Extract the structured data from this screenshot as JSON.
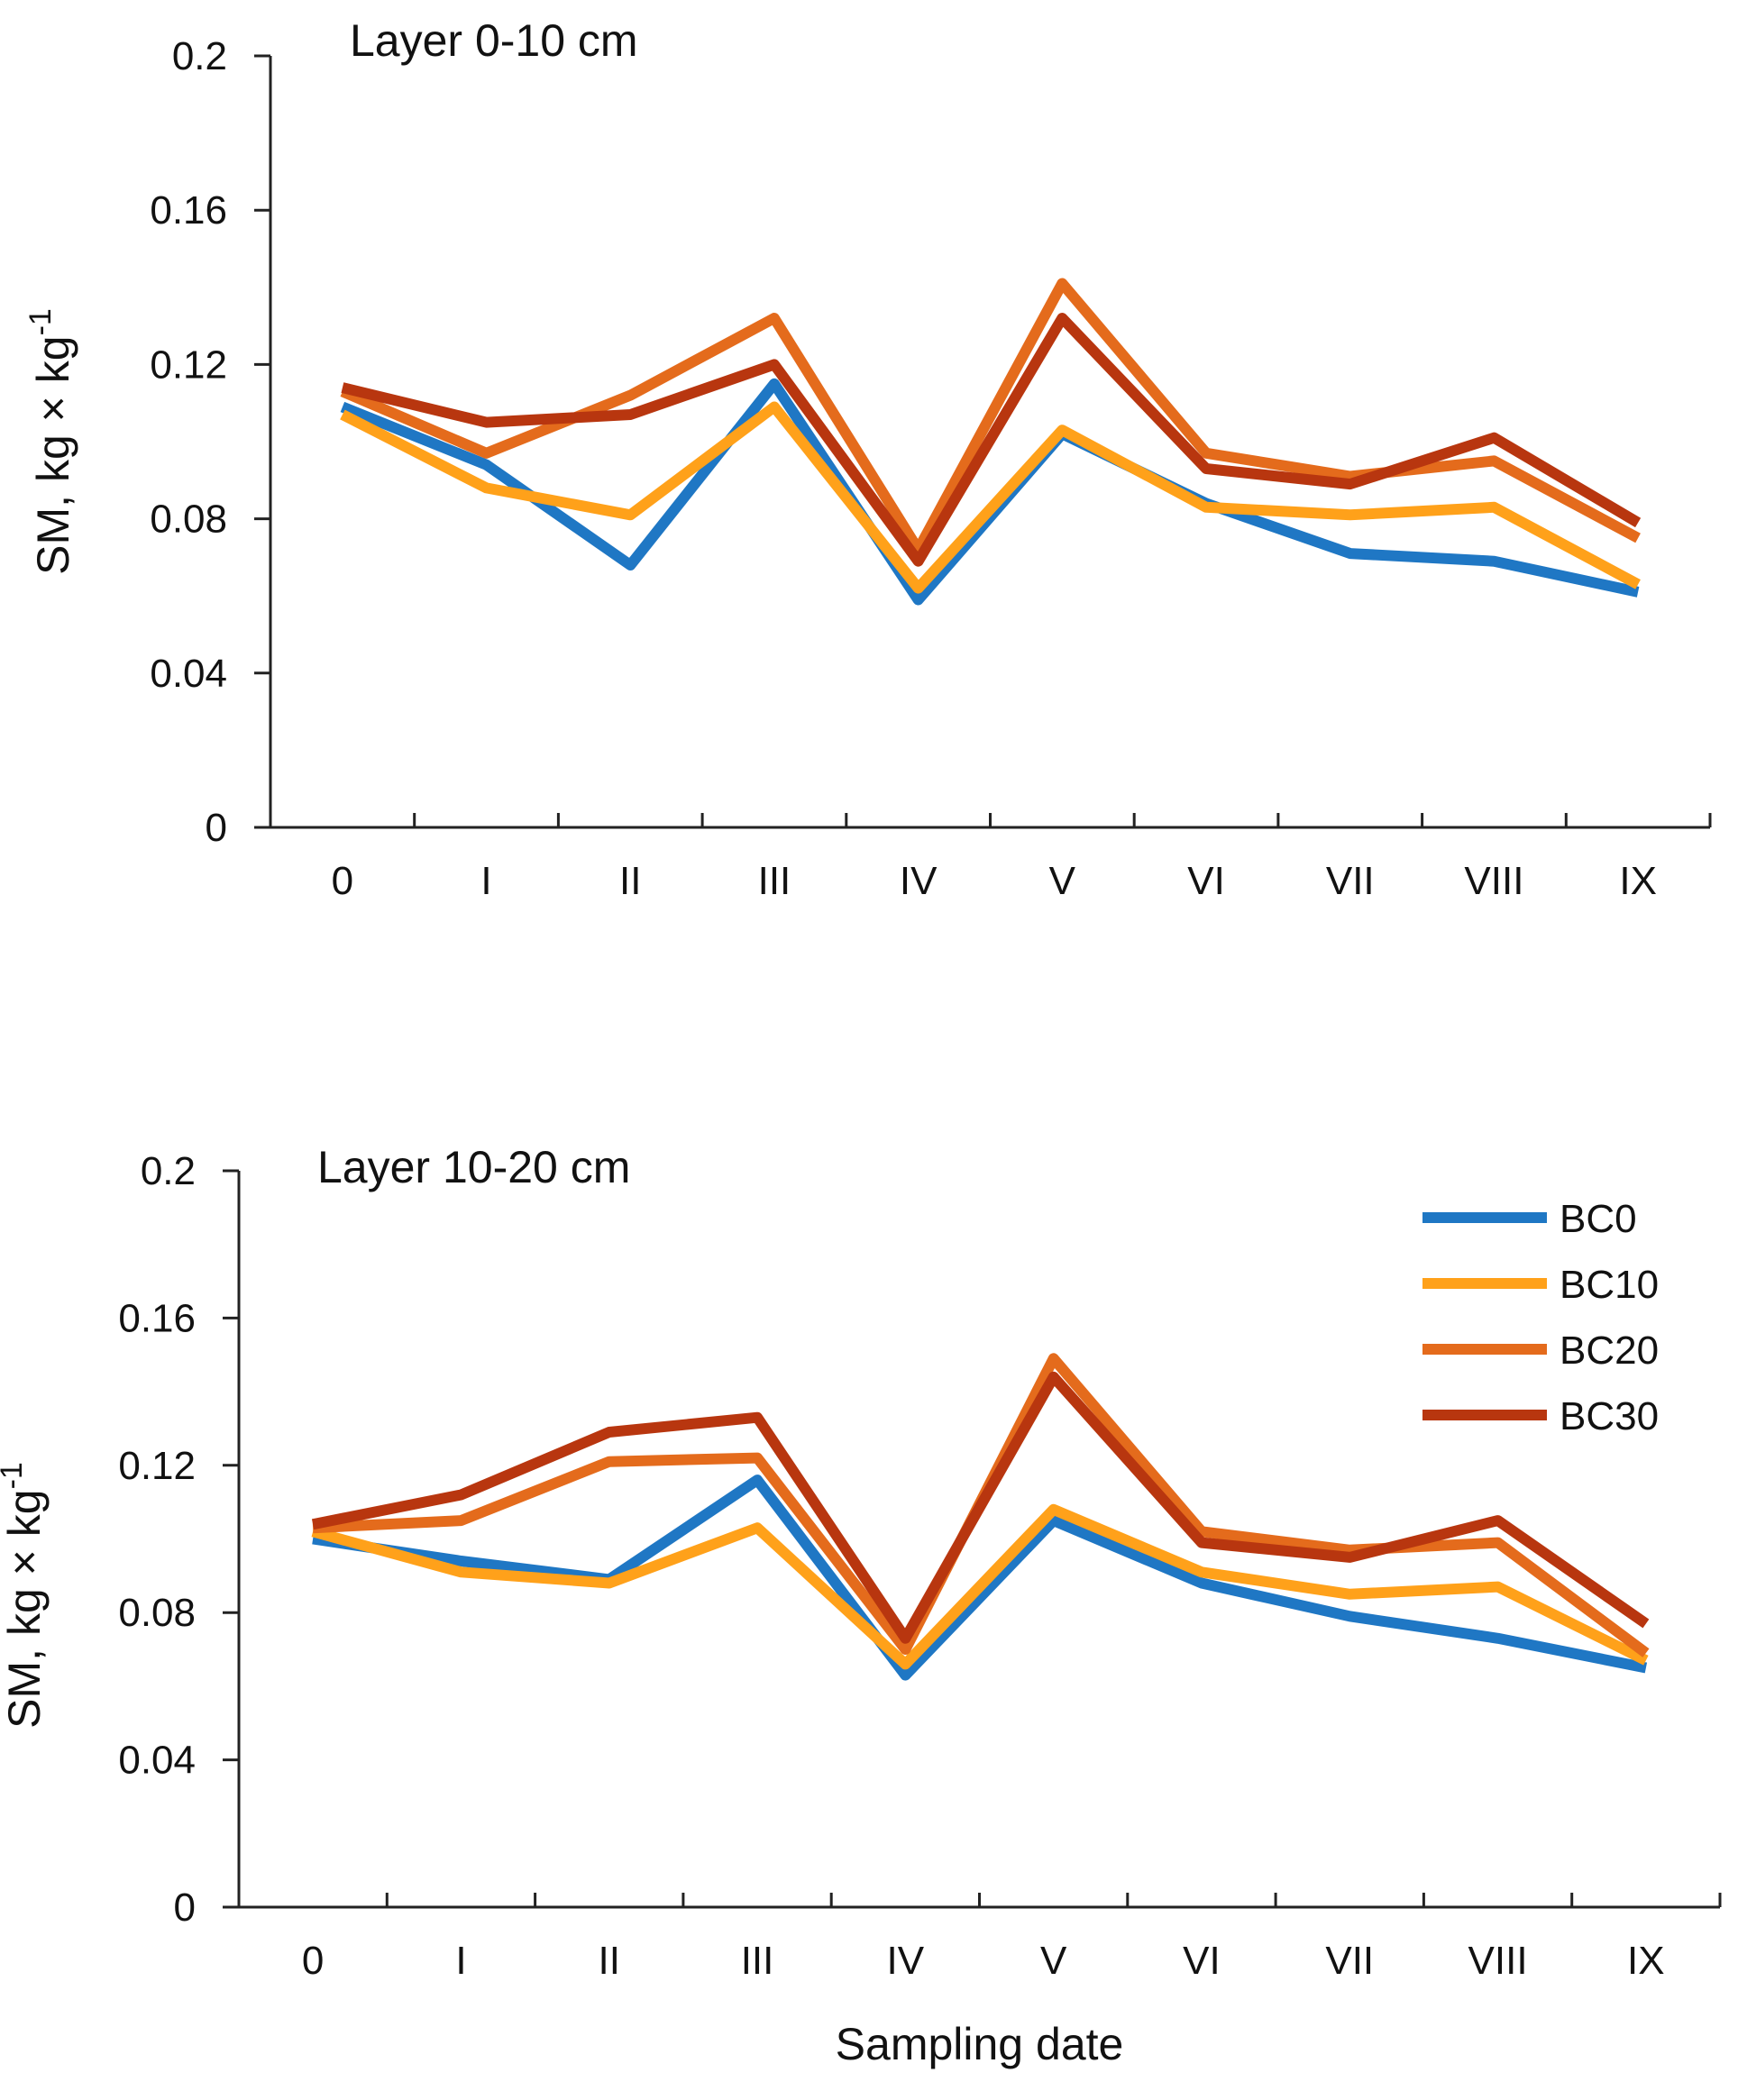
{
  "chart_data": [
    {
      "type": "line",
      "title": "Layer 0-10 cm",
      "xlabel": "",
      "ylabel": "SM, kg × kg",
      "ylabel_superscript": "-1",
      "categories": [
        "0",
        "I",
        "II",
        "III",
        "IV",
        "V",
        "VI",
        "VII",
        "VIII",
        "IX"
      ],
      "ylim": [
        0,
        0.2
      ],
      "yticks": [
        "0",
        "0.04",
        "0.08",
        "0.12",
        "0.16",
        "0.2"
      ],
      "grid": false,
      "series": [
        {
          "name": "BC0",
          "color": "#1f77c4",
          "values": [
            0.109,
            0.094,
            0.068,
            0.115,
            0.059,
            0.102,
            0.084,
            0.071,
            0.069,
            0.061
          ]
        },
        {
          "name": "BC10",
          "color": "#ffa11a",
          "values": [
            0.107,
            0.088,
            0.081,
            0.109,
            0.062,
            0.103,
            0.083,
            0.081,
            0.083,
            0.063
          ]
        },
        {
          "name": "BC20",
          "color": "#e46b1c",
          "values": [
            0.113,
            0.097,
            0.112,
            0.132,
            0.072,
            0.141,
            0.097,
            0.091,
            0.095,
            0.075
          ]
        },
        {
          "name": "BC30",
          "color": "#b8360f",
          "values": [
            0.114,
            0.105,
            0.107,
            0.12,
            0.069,
            0.132,
            0.093,
            0.089,
            0.101,
            0.079
          ]
        }
      ]
    },
    {
      "type": "line",
      "title": "Layer 10-20 cm",
      "xlabel": "Sampling date",
      "ylabel": "SM, kg × kg",
      "ylabel_superscript": "-1",
      "categories": [
        "0",
        "I",
        "II",
        "III",
        "IV",
        "V",
        "VI",
        "VII",
        "VIII",
        "IX"
      ],
      "ylim": [
        0,
        0.2
      ],
      "yticks": [
        "0",
        "0.04",
        "0.08",
        "0.12",
        "0.16",
        "0.2"
      ],
      "grid": false,
      "legend_position": "top-right",
      "series": [
        {
          "name": "BC0",
          "color": "#1f77c4",
          "values": [
            0.1,
            0.094,
            0.089,
            0.116,
            0.063,
            0.105,
            0.088,
            0.079,
            0.073,
            0.065
          ]
        },
        {
          "name": "BC10",
          "color": "#ffa11a",
          "values": [
            0.102,
            0.091,
            0.088,
            0.103,
            0.066,
            0.108,
            0.091,
            0.085,
            0.087,
            0.067
          ]
        },
        {
          "name": "BC20",
          "color": "#e46b1c",
          "values": [
            0.103,
            0.105,
            0.121,
            0.122,
            0.07,
            0.149,
            0.102,
            0.097,
            0.099,
            0.069
          ]
        },
        {
          "name": "BC30",
          "color": "#b8360f",
          "values": [
            0.104,
            0.112,
            0.129,
            0.133,
            0.073,
            0.144,
            0.099,
            0.095,
            0.105,
            0.077
          ]
        }
      ]
    }
  ]
}
